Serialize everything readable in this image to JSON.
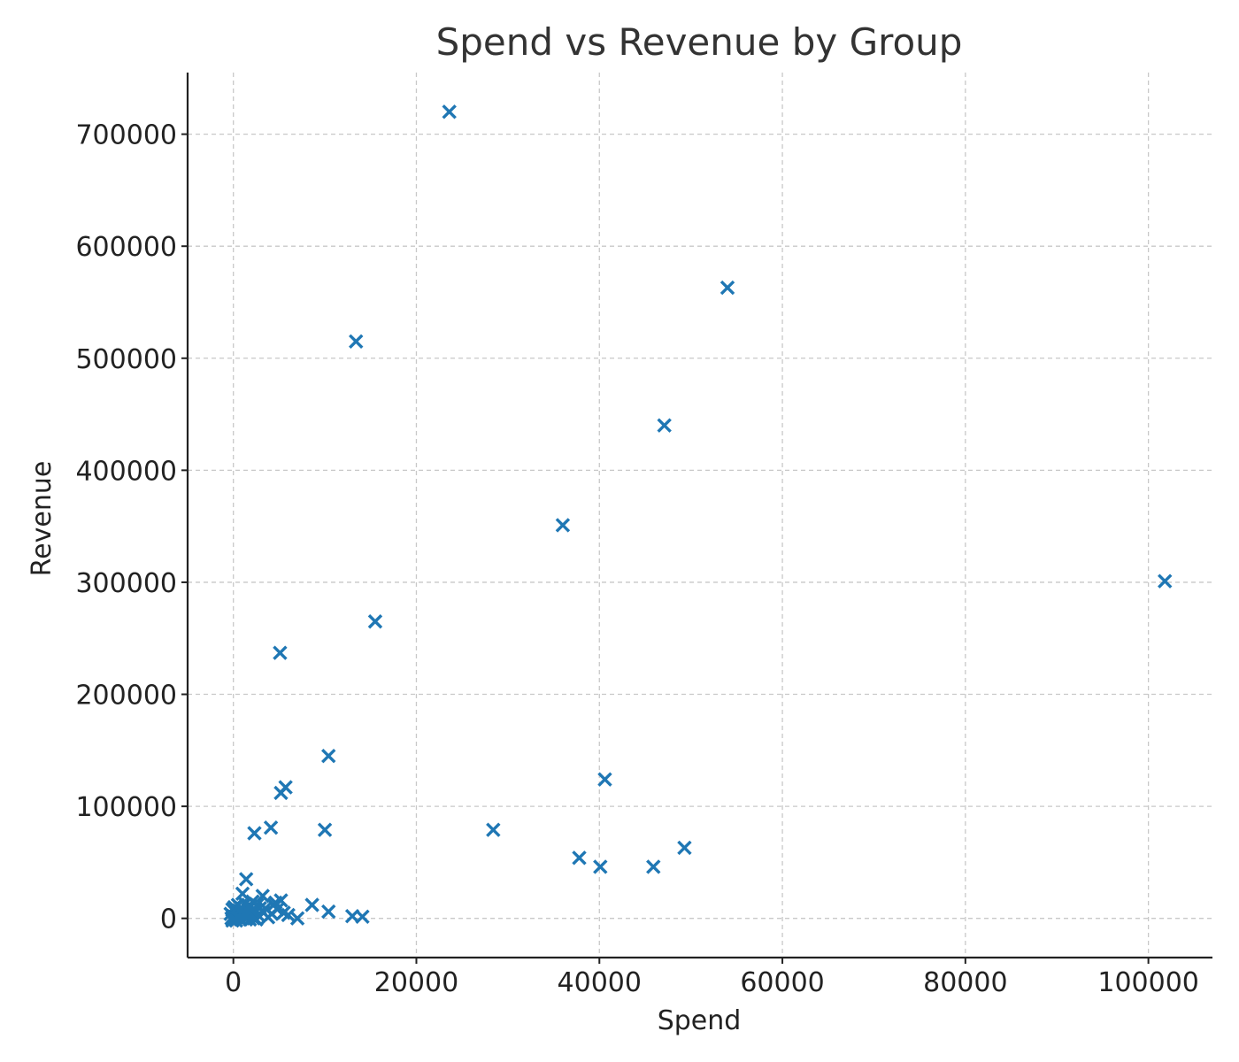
{
  "chart_data": {
    "type": "scatter",
    "title": "Spend vs Revenue by Group",
    "xlabel": "Spend",
    "ylabel": "Revenue",
    "xlim": [
      -5000,
      107000
    ],
    "ylim": [
      -35000,
      755000
    ],
    "xticks": [
      0,
      20000,
      40000,
      60000,
      80000,
      100000
    ],
    "yticks": [
      0,
      100000,
      200000,
      300000,
      400000,
      500000,
      600000,
      700000
    ],
    "grid": true,
    "marker": "x",
    "color": "#1f77b4",
    "series": [
      {
        "points": [
          [
            23600,
            720000
          ],
          [
            54000,
            563000
          ],
          [
            13400,
            515000
          ],
          [
            47100,
            440000
          ],
          [
            36000,
            351000
          ],
          [
            101800,
            301000
          ],
          [
            15500,
            265000
          ],
          [
            5100,
            237000
          ],
          [
            10400,
            145000
          ],
          [
            40600,
            124000
          ],
          [
            5700,
            117000
          ],
          [
            5200,
            112000
          ],
          [
            4100,
            81000
          ],
          [
            2300,
            76000
          ],
          [
            10000,
            79000
          ],
          [
            28400,
            79000
          ],
          [
            49300,
            63000
          ],
          [
            37800,
            54000
          ],
          [
            40100,
            46000
          ],
          [
            45900,
            46000
          ],
          [
            1400,
            35000
          ],
          [
            1000,
            22000
          ],
          [
            3200,
            20000
          ],
          [
            2100,
            15000
          ],
          [
            4600,
            14000
          ],
          [
            5200,
            16000
          ],
          [
            8600,
            12000
          ],
          [
            10400,
            6000
          ],
          [
            13000,
            2000
          ],
          [
            14100,
            1500
          ],
          [
            7000,
            0
          ],
          [
            6000,
            3000
          ],
          [
            5500,
            5000
          ],
          [
            4800,
            8000
          ],
          [
            4200,
            4000
          ],
          [
            3800,
            1000
          ],
          [
            3300,
            5000
          ],
          [
            2900,
            9000
          ],
          [
            2700,
            3000
          ],
          [
            2400,
            7000
          ],
          [
            2200,
            0
          ],
          [
            1900,
            11000
          ],
          [
            1800,
            4000
          ],
          [
            1600,
            8000
          ],
          [
            1500,
            1000
          ],
          [
            1300,
            13000
          ],
          [
            1200,
            6000
          ],
          [
            1100,
            2000
          ],
          [
            900,
            9000
          ],
          [
            800,
            4000
          ],
          [
            700,
            0
          ],
          [
            600,
            7000
          ],
          [
            500,
            12000
          ],
          [
            400,
            3000
          ],
          [
            300,
            1000
          ],
          [
            200,
            6000
          ],
          [
            100,
            10000
          ],
          [
            0,
            2000
          ],
          [
            -100,
            8000
          ],
          [
            -200,
            0
          ],
          [
            -300,
            4000
          ],
          [
            1700,
            2000
          ],
          [
            2600,
            12000
          ],
          [
            3500,
            9000
          ],
          [
            4400,
            12000
          ],
          [
            500,
            1000
          ],
          [
            1000,
            5000
          ],
          [
            300,
            -2000
          ],
          [
            -100,
            -2000
          ],
          [
            1800,
            -1000
          ],
          [
            800,
            -1000
          ],
          [
            2500,
            -1000
          ]
        ]
      }
    ]
  }
}
